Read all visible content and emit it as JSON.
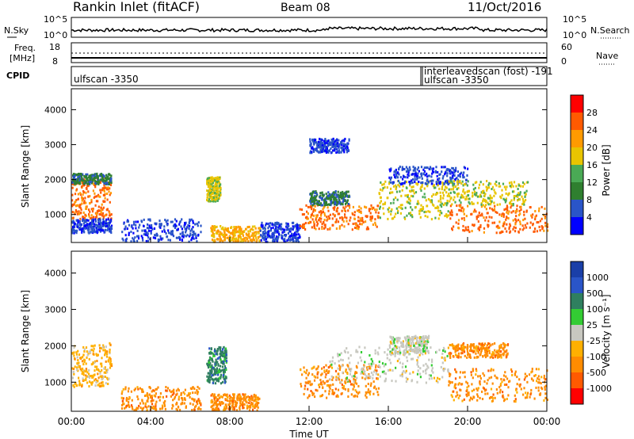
{
  "header": {
    "radar": "Rankin Inlet (fitACF)",
    "beam": "Beam 08",
    "date": "11/Oct/2016"
  },
  "top_panels": {
    "nsky_label": "N.Sky",
    "nsearch_label": "N.Search",
    "freq_label_1": "Freq.",
    "freq_label_2": "[MHz]",
    "nave_label": "Nave",
    "cpid_label": "CPID",
    "left_ticks_top": [
      "10^5",
      "10^0"
    ],
    "right_ticks_top": [
      "10^5",
      "10^0"
    ],
    "left_ticks_freq": [
      "18",
      "8"
    ],
    "right_ticks_nave": [
      "60",
      "0"
    ],
    "cpid_entries": [
      "ulfscan -3350",
      "interleavedscan (fost) -191",
      "ulfscan -3350"
    ]
  },
  "colors": {
    "power": [
      "#0000ff",
      "#2a55c8",
      "#2f7f2f",
      "#4aaa55",
      "#e8c400",
      "#ff9a00",
      "#ff5a00",
      "#ff0000"
    ],
    "velocity": [
      "#ff0000",
      "#ff5a00",
      "#ff8c00",
      "#ffb000",
      "#c8c8c0",
      "#33cc33",
      "#2f7f5f",
      "#2a55c8",
      "#1a3fa8"
    ]
  },
  "chart_data": [
    {
      "type": "heatmap",
      "title": "Power",
      "xlabel": "",
      "ylabel": "Slant Range [km]",
      "ylim": [
        200,
        4600
      ],
      "yticks": [
        "1000",
        "2000",
        "3000",
        "4000"
      ],
      "colorbar_label": "Power [dB]",
      "colorbar_ticks": [
        "4",
        "8",
        "12",
        "16",
        "20",
        "24",
        "28"
      ],
      "colorbar_range": [
        0,
        32
      ],
      "regions": [
        {
          "t0": 0.0,
          "t1": 2.0,
          "r0": 900,
          "r1": 2100,
          "level": 26
        },
        {
          "t0": 0.0,
          "t1": 2.0,
          "r0": 1900,
          "r1": 2200,
          "level": 12
        },
        {
          "t0": 0.0,
          "t1": 2.0,
          "r0": 500,
          "r1": 900,
          "level": 8
        },
        {
          "t0": 2.5,
          "t1": 6.5,
          "r0": 250,
          "r1": 900,
          "level": 8
        },
        {
          "t0": 6.8,
          "t1": 7.5,
          "r0": 1400,
          "r1": 2100,
          "level": 20
        },
        {
          "t0": 7.0,
          "t1": 9.5,
          "r0": 250,
          "r1": 700,
          "level": 24
        },
        {
          "t0": 9.5,
          "t1": 11.5,
          "r0": 250,
          "r1": 800,
          "level": 8
        },
        {
          "t0": 11.5,
          "t1": 15.5,
          "r0": 600,
          "r1": 1300,
          "level": 26
        },
        {
          "t0": 12.0,
          "t1": 14.0,
          "r0": 1300,
          "r1": 1700,
          "level": 12
        },
        {
          "t0": 15.5,
          "t1": 19.0,
          "r0": 900,
          "r1": 2000,
          "level": 20
        },
        {
          "t0": 16.0,
          "t1": 20.0,
          "r0": 1900,
          "r1": 2400,
          "level": 8
        },
        {
          "t0": 19.0,
          "t1": 24.0,
          "r0": 500,
          "r1": 1300,
          "level": 28
        },
        {
          "t0": 19.0,
          "t1": 23.0,
          "r0": 1300,
          "r1": 2000,
          "level": 20
        },
        {
          "t0": 12.0,
          "t1": 14.0,
          "r0": 2800,
          "r1": 3200,
          "level": 8
        }
      ]
    },
    {
      "type": "heatmap",
      "title": "Velocity",
      "xlabel": "Time UT",
      "ylabel": "Slant Range [km]",
      "ylim": [
        200,
        4600
      ],
      "yticks": [
        "1000",
        "2000",
        "3000",
        "4000"
      ],
      "xticks": [
        "00:00",
        "04:00",
        "08:00",
        "12:00",
        "16:00",
        "20:00",
        "00:00"
      ],
      "xlim": [
        0,
        24
      ],
      "colorbar_label": "Velocity [m s⁻¹]",
      "colorbar_ticks": [
        "1000",
        "500",
        "100",
        "25",
        "-25",
        "-100",
        "-500",
        "-1000"
      ],
      "regions": [
        {
          "t0": 0.0,
          "t1": 2.0,
          "r0": 900,
          "r1": 2100,
          "level": 3
        },
        {
          "t0": 2.5,
          "t1": 6.5,
          "r0": 250,
          "r1": 900,
          "level": 2
        },
        {
          "t0": 6.8,
          "t1": 7.8,
          "r0": 1000,
          "r1": 2000,
          "level": 6
        },
        {
          "t0": 7.0,
          "t1": 9.5,
          "r0": 250,
          "r1": 700,
          "level": 2
        },
        {
          "t0": 11.5,
          "t1": 15.5,
          "r0": 600,
          "r1": 1500,
          "level": 2
        },
        {
          "t0": 13.0,
          "t1": 19.0,
          "r0": 1000,
          "r1": 2000,
          "level": 4
        },
        {
          "t0": 19.0,
          "t1": 22.0,
          "r0": 1700,
          "r1": 2100,
          "level": 2
        },
        {
          "t0": 19.0,
          "t1": 24.0,
          "r0": 500,
          "r1": 1400,
          "level": 2
        },
        {
          "t0": 16.0,
          "t1": 18.0,
          "r0": 1800,
          "r1": 2300,
          "level": 4
        }
      ]
    }
  ]
}
